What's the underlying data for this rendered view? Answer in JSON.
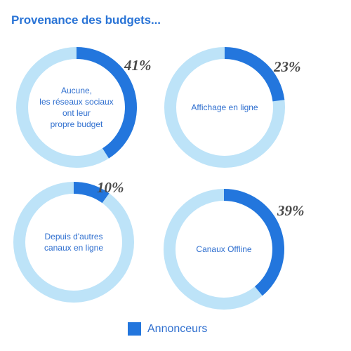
{
  "title": "Provenance des budgets...",
  "colors": {
    "highlight": "#2376dd",
    "base": "#bde3f8",
    "center_text": "#2f6fcf",
    "pct_text": "#4a4a4a",
    "title": "#2a74d6"
  },
  "legend": {
    "label": "Annonceurs"
  },
  "chart_data": [
    {
      "type": "pie",
      "variant": "donut",
      "series_name": "Annonceurs",
      "value": 41,
      "value_label": "41%",
      "center_label": [
        "Aucune,",
        "les réseaux sociaux",
        "ont leur",
        "propre budget"
      ]
    },
    {
      "type": "pie",
      "variant": "donut",
      "series_name": "Annonceurs",
      "value": 23,
      "value_label": "23%",
      "center_label": [
        "Affichage en ligne"
      ]
    },
    {
      "type": "pie",
      "variant": "donut",
      "series_name": "Annonceurs",
      "value": 10,
      "value_label": "10%",
      "center_label": [
        "Depuis d'autres",
        "canaux en ligne"
      ]
    },
    {
      "type": "pie",
      "variant": "donut",
      "series_name": "Annonceurs",
      "value": 39,
      "value_label": "39%",
      "center_label": [
        "Canaux Offline"
      ]
    }
  ]
}
